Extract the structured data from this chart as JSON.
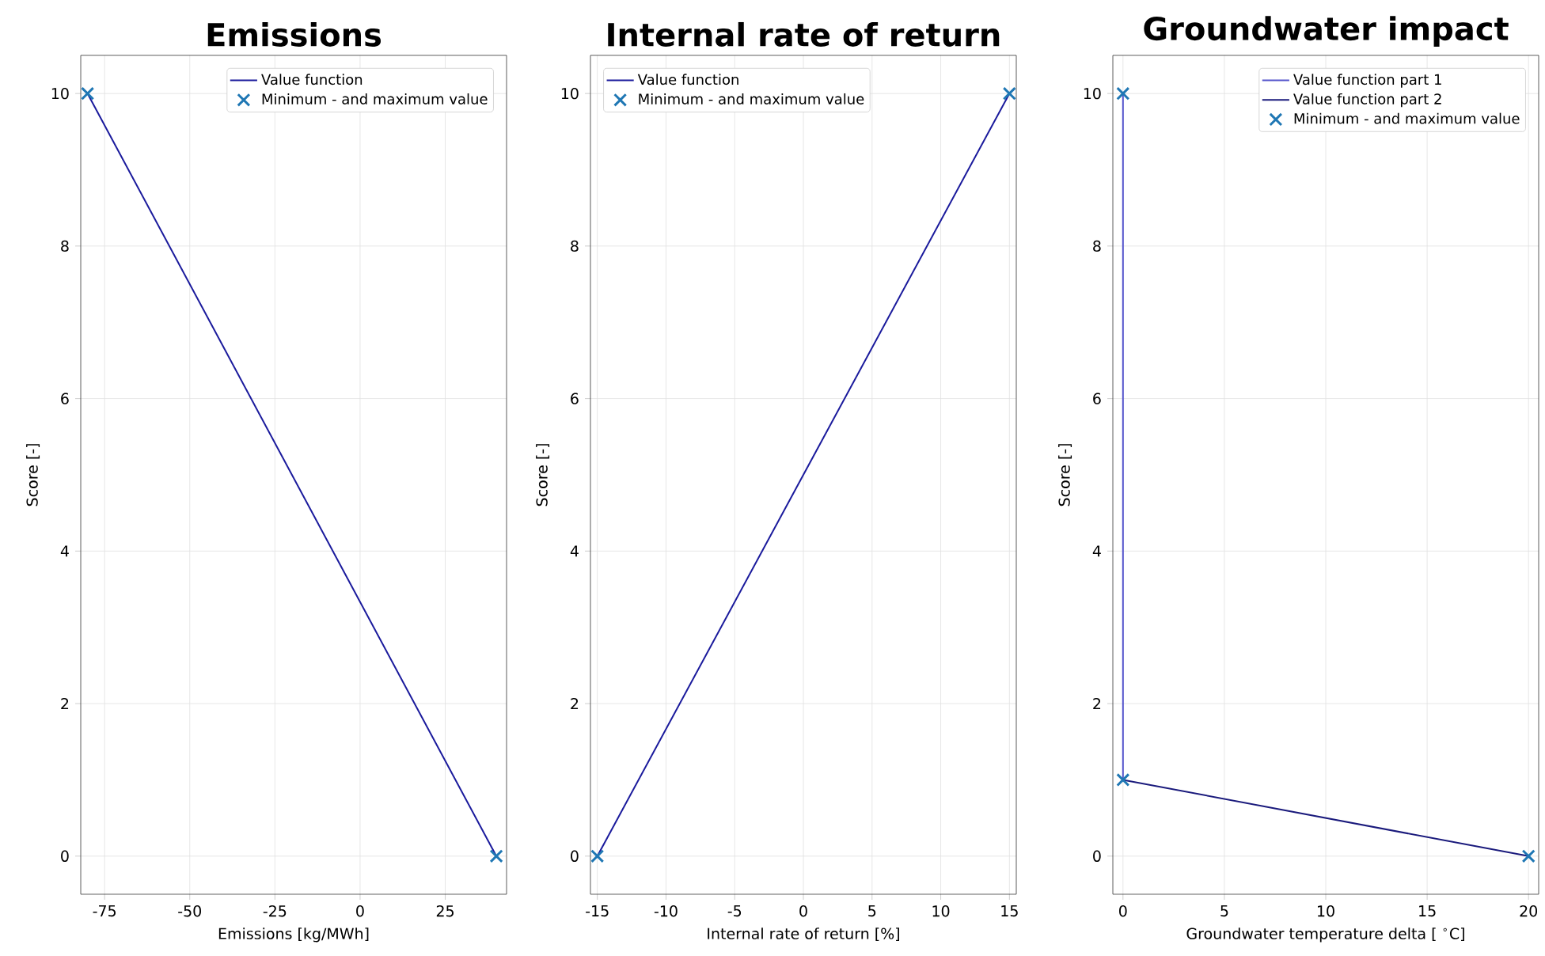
{
  "chart_data": [
    {
      "type": "line",
      "title": "Emissions",
      "xlabel": "Emissions [kg/MWh]",
      "ylabel": "Score [-]",
      "xlim": [
        -82,
        43
      ],
      "ylim": [
        -0.5,
        10.5
      ],
      "xticks": [
        -75,
        -50,
        -25,
        0,
        25
      ],
      "yticks": [
        0,
        2,
        4,
        6,
        8,
        10
      ],
      "grid": true,
      "legend": "top right",
      "series": [
        {
          "name": "Value function",
          "color": "#1a1a9c",
          "x": [
            -80,
            40
          ],
          "values": [
            10,
            0
          ]
        },
        {
          "name": "Minimum - and maximum value",
          "type": "scatter",
          "marker": "cross",
          "color": "#1f77b4",
          "x": [
            -80,
            40
          ],
          "values": [
            10,
            0
          ]
        }
      ]
    },
    {
      "type": "line",
      "title": "Internal rate of return",
      "xlabel": "Internal rate of return [%]",
      "ylabel": "Score [-]",
      "xlim": [
        -15.5,
        15.5
      ],
      "ylim": [
        -0.5,
        10.5
      ],
      "xticks": [
        -15,
        -10,
        -5,
        0,
        5,
        10,
        15
      ],
      "yticks": [
        0,
        2,
        4,
        6,
        8,
        10
      ],
      "grid": true,
      "legend": "top left",
      "series": [
        {
          "name": "Value function",
          "color": "#1a1a9c",
          "x": [
            -15,
            15
          ],
          "values": [
            0,
            10
          ]
        },
        {
          "name": "Minimum - and maximum value",
          "type": "scatter",
          "marker": "cross",
          "color": "#1f77b4",
          "x": [
            -15,
            15
          ],
          "values": [
            0,
            10
          ]
        }
      ]
    },
    {
      "type": "line",
      "title": "Groundwater impact",
      "xlabel": "Groundwater temperature delta [ $^{∘}$C]",
      "ylabel": "Score [-]",
      "xlim": [
        -0.5,
        20.5
      ],
      "ylim": [
        -0.5,
        10.5
      ],
      "xticks": [
        0,
        5,
        10,
        15,
        20
      ],
      "yticks": [
        0,
        2,
        4,
        6,
        8,
        10
      ],
      "grid": true,
      "legend": "top right",
      "series": [
        {
          "name": "Value function part 1",
          "color": "#5555cc",
          "x": [
            0,
            0
          ],
          "values": [
            10,
            1
          ]
        },
        {
          "name": "Value function part 2",
          "color": "#1a1a7c",
          "x": [
            0,
            20
          ],
          "values": [
            1,
            0
          ]
        },
        {
          "name": "Minimum - and maximum value",
          "type": "scatter",
          "marker": "cross",
          "color": "#1f77b4",
          "x": [
            0,
            0,
            20
          ],
          "values": [
            10,
            1,
            0
          ]
        }
      ]
    }
  ]
}
